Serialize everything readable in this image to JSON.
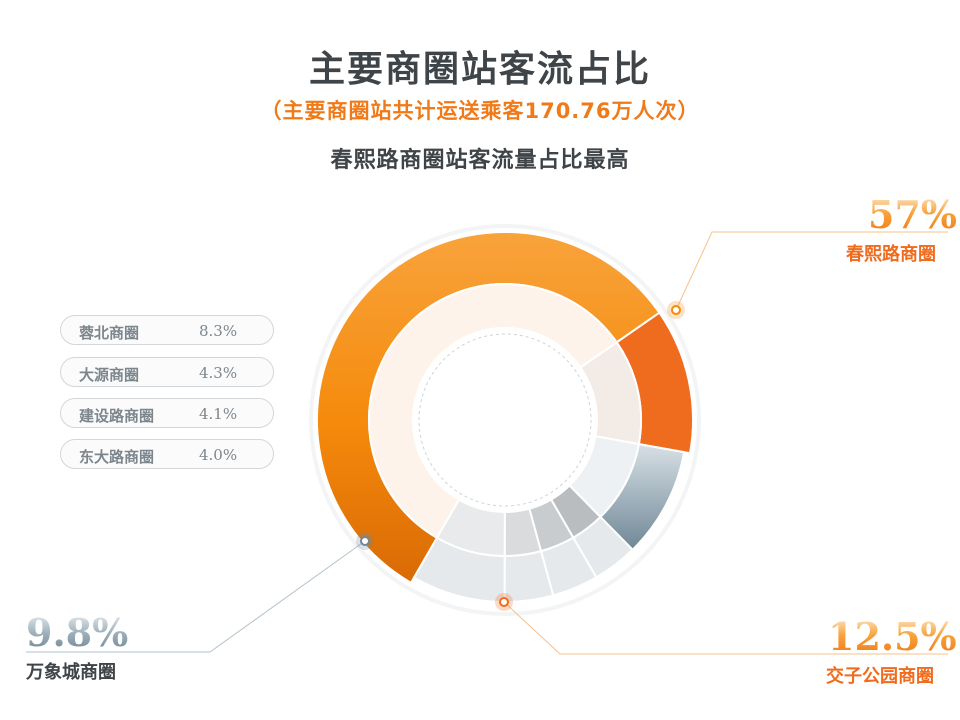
{
  "title": "主要商圈站客流占比",
  "subtitle": "（主要商圈站共计运送乘客170.76万人次）",
  "headline": "春熙路商圈站客流量占比最高",
  "colors": {
    "primary": "#f58a0b",
    "secondary": "#ef6c1f",
    "tertiary": "#b3c2cb",
    "muted": "#e3e6e9",
    "text": "#3e4448",
    "label_gray": "#7c868d"
  },
  "chart_data": {
    "type": "pie",
    "variant": "donut",
    "slices": [
      {
        "label": "春熙路商圈",
        "value": 57,
        "display": "57%"
      },
      {
        "label": "交子公园商圈",
        "value": 12.5,
        "display": "12.5%"
      },
      {
        "label": "万象城商圈",
        "value": 9.8,
        "display": "9.8%"
      },
      {
        "label": "东大路商圈",
        "value": 4.0,
        "display": "4.0%"
      },
      {
        "label": "建设路商圈",
        "value": 4.1,
        "display": "4.1%"
      },
      {
        "label": "大源商圈",
        "value": 4.3,
        "display": "4.3%"
      },
      {
        "label": "蓉北商圈",
        "value": 8.3,
        "display": "8.3%"
      }
    ]
  },
  "callouts": {
    "chunxi": {
      "value": "57%",
      "label": "春熙路商圈"
    },
    "jiaozi": {
      "value": "12.5%",
      "label": "交子公园商圈"
    },
    "wanxiang": {
      "value": "9.8%",
      "label": "万象城商圈"
    }
  },
  "small_list": [
    {
      "name": "蓉北商圈",
      "value": "8.3%"
    },
    {
      "name": "大源商圈",
      "value": "4.3%"
    },
    {
      "name": "建设路商圈",
      "value": "4.1%"
    },
    {
      "name": "东大路商圈",
      "value": "4.0%"
    }
  ]
}
